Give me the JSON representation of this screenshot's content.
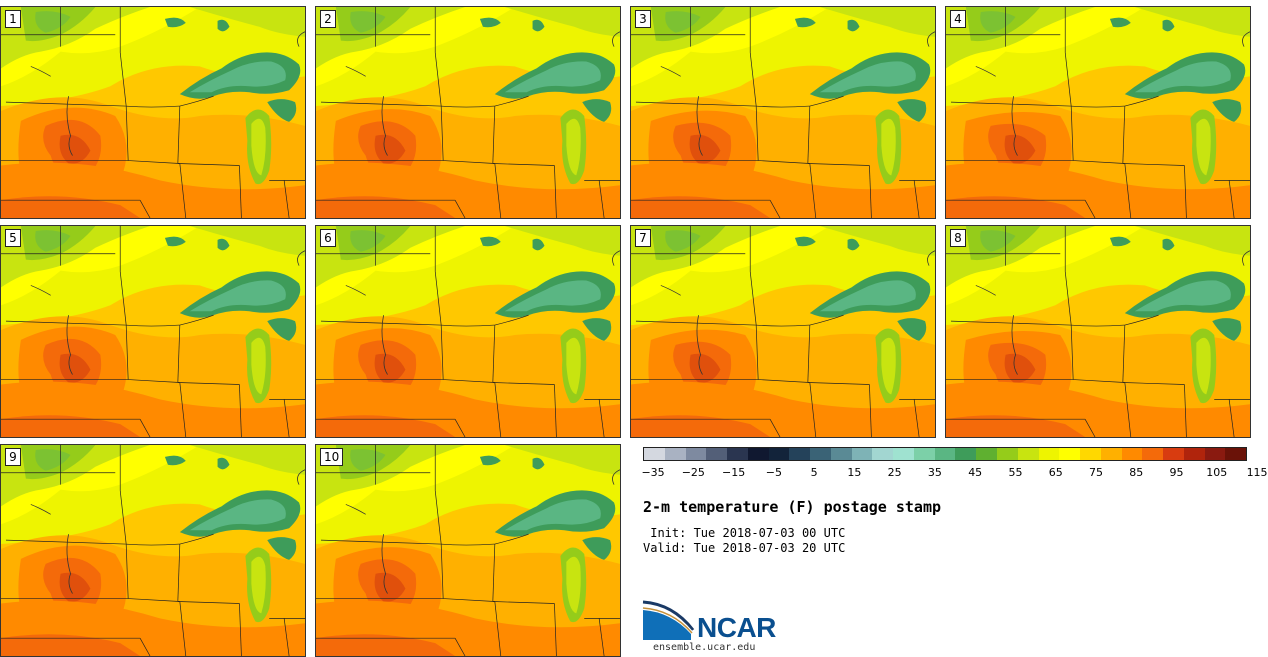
{
  "title": "2-m temperature (F) postage stamp",
  "init": " Init: Tue 2018-07-03 00 UTC",
  "valid": "Valid: Tue 2018-07-03 20 UTC",
  "logo_text": "NCAR",
  "logo_subtext": "ensemble.ucar.edu",
  "panels": [
    {
      "label": "1"
    },
    {
      "label": "2"
    },
    {
      "label": "3"
    },
    {
      "label": "4"
    },
    {
      "label": "5"
    },
    {
      "label": "6"
    },
    {
      "label": "7"
    },
    {
      "label": "8"
    },
    {
      "label": "9"
    },
    {
      "label": "10"
    }
  ],
  "colorbar": {
    "ticks": [
      "−35",
      "−25",
      "−15",
      "−5",
      "5",
      "15",
      "25",
      "35",
      "45",
      "55",
      "65",
      "75",
      "85",
      "95",
      "105",
      "115"
    ],
    "colors": [
      "#d4d8e0",
      "#a9b2c2",
      "#7e8aa0",
      "#535f78",
      "#2a3550",
      "#101830",
      "#12233a",
      "#24425a",
      "#3a6376",
      "#5a8a95",
      "#7eb3b6",
      "#a2d6d1",
      "#9fe2d0",
      "#7cd0a8",
      "#5ab683",
      "#3e9c5a",
      "#5fb030",
      "#95cc1a",
      "#c8e410",
      "#eef400",
      "#ffff00",
      "#ffd800",
      "#ffb000",
      "#ff8a00",
      "#f46a0a",
      "#d83c10",
      "#b0240c",
      "#8a1a10",
      "#6a1208"
    ]
  }
}
